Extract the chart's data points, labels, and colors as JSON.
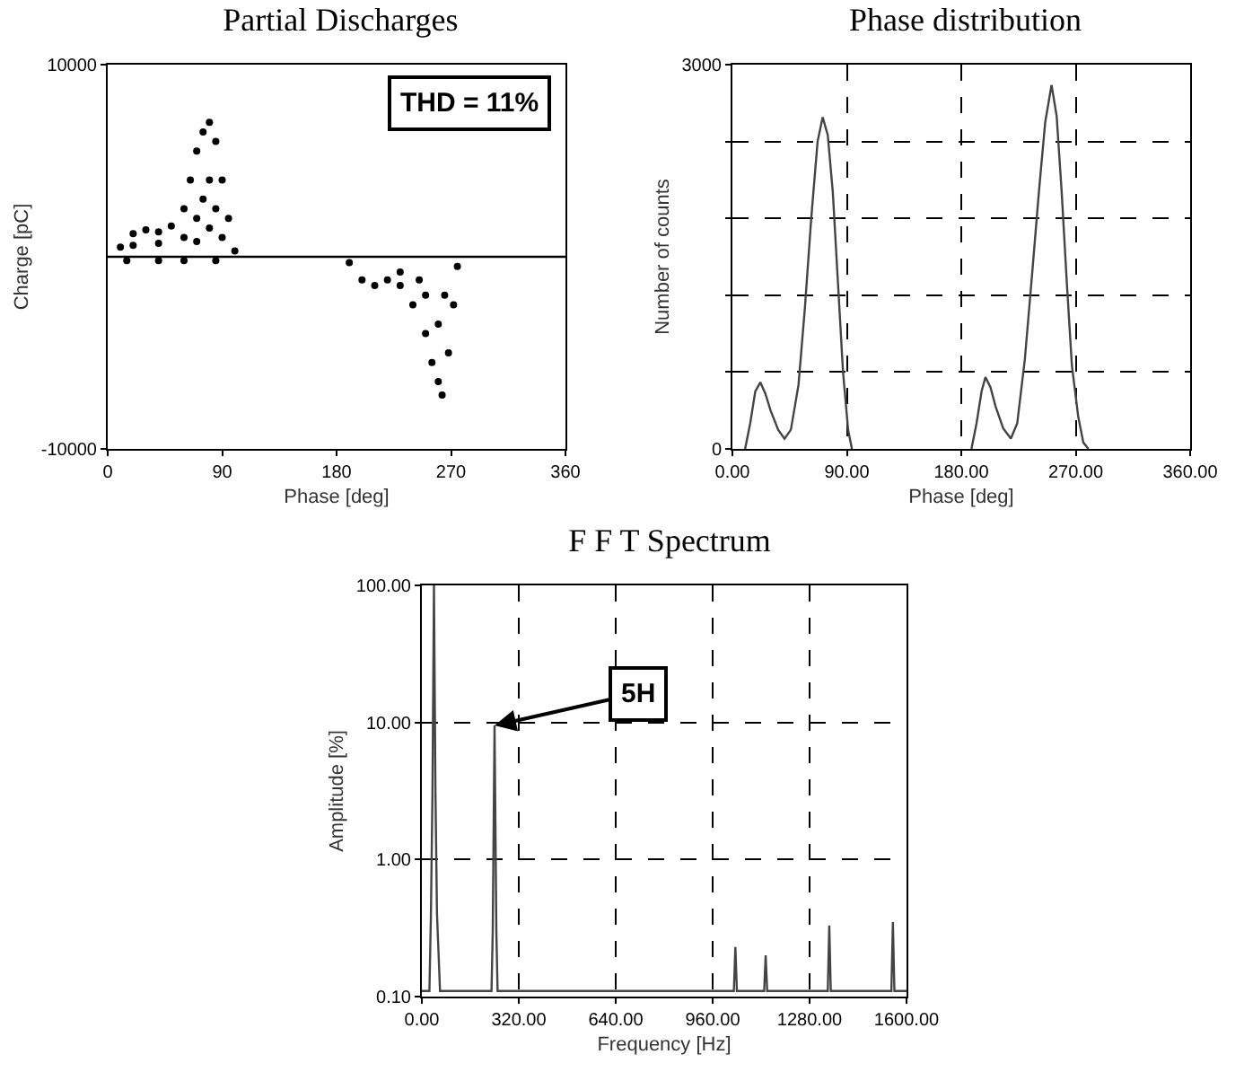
{
  "chart_data": [
    {
      "type": "scatter",
      "title": "Partial Discharges",
      "xlabel": "Phase [deg]",
      "ylabel": "Charge [pC]",
      "xlim": [
        0,
        360
      ],
      "ylim": [
        -10000,
        10000
      ],
      "xticks": [
        0,
        90,
        180,
        270,
        360
      ],
      "yticks": [
        -10000,
        10000
      ],
      "grid": false,
      "marker": "circle",
      "annotations": [
        "THD = 11%"
      ],
      "ref_lines": [
        {
          "axis": "y",
          "value": 0,
          "color": "#000000"
        }
      ],
      "series": [
        {
          "color": "#000000",
          "x": [
            10,
            20,
            30,
            40,
            50,
            60,
            65,
            70,
            75,
            80,
            85,
            90,
            95,
            100,
            20,
            40,
            60,
            70,
            75,
            80,
            85,
            90,
            70,
            80,
            15,
            40,
            60,
            85,
            190,
            200,
            210,
            220,
            230,
            240,
            250,
            255,
            260,
            263,
            268,
            272,
            275,
            230,
            250,
            260,
            265,
            245
          ],
          "values": [
            500,
            1200,
            1400,
            1300,
            1600,
            2500,
            4000,
            5500,
            6500,
            7000,
            6000,
            4000,
            2000,
            300,
            600,
            700,
            1000,
            2000,
            3000,
            4000,
            2500,
            1000,
            800,
            1500,
            -200,
            -200,
            -200,
            -200,
            -300,
            -1200,
            -1500,
            -1200,
            -1500,
            -2500,
            -4000,
            -5500,
            -6500,
            -7200,
            -5000,
            -2500,
            -500,
            -800,
            -2000,
            -3500,
            -2000,
            -1200
          ]
        }
      ]
    },
    {
      "type": "line",
      "title": "Phase distribution",
      "xlabel": "Phase [deg]",
      "ylabel": "Number of counts",
      "xlim": [
        0,
        360
      ],
      "ylim": [
        0,
        3000
      ],
      "xticks": [
        {
          "value": 0,
          "label": "0.00"
        },
        {
          "value": 90,
          "label": "90.00"
        },
        {
          "value": 180,
          "label": "180.00"
        },
        {
          "value": 270,
          "label": "270.00"
        },
        {
          "value": 360,
          "label": "360.00"
        }
      ],
      "yticks": [
        0,
        {
          "value": 600,
          "label": null
        },
        {
          "value": 1200,
          "label": null
        },
        {
          "value": 1800,
          "label": null
        },
        {
          "value": 2400,
          "label": null
        },
        3000
      ],
      "grid": true,
      "line_style": "solid",
      "series": [
        {
          "color": "#444444",
          "x": [
            10,
            14,
            18,
            22,
            26,
            30,
            36,
            41,
            46,
            52,
            57,
            62,
            67,
            71,
            75,
            79,
            83,
            87,
            91,
            94
          ],
          "values": [
            0,
            200,
            450,
            520,
            430,
            300,
            150,
            80,
            150,
            500,
            1100,
            1800,
            2400,
            2590,
            2450,
            2000,
            1300,
            600,
            150,
            0
          ]
        },
        {
          "color": "#444444",
          "x": [
            188,
            192,
            196,
            199,
            203,
            207,
            213,
            219,
            224,
            230,
            236,
            241,
            246,
            251,
            255,
            259,
            263,
            267,
            272,
            276,
            280
          ],
          "values": [
            0,
            200,
            450,
            560,
            480,
            330,
            160,
            80,
            200,
            700,
            1400,
            2000,
            2550,
            2840,
            2600,
            2000,
            1300,
            650,
            250,
            50,
            0
          ]
        }
      ]
    },
    {
      "type": "line",
      "title": "F F T Spectrum",
      "xlabel": "Frequency [Hz]",
      "ylabel": "Amplitude [%]",
      "log": "y",
      "xlim": [
        0,
        1600
      ],
      "ylim": [
        0.1,
        100
      ],
      "xticks": [
        {
          "value": 0,
          "label": "0.00"
        },
        {
          "value": 320,
          "label": "320.00"
        },
        {
          "value": 640,
          "label": "640.00"
        },
        {
          "value": 960,
          "label": "960.00"
        },
        {
          "value": 1280,
          "label": "1280.00"
        },
        {
          "value": 1600,
          "label": "1600.00"
        }
      ],
      "yticks": [
        {
          "value": 0.1,
          "label": "0.10"
        },
        {
          "value": 1,
          "label": "1.00"
        },
        {
          "value": 10,
          "label": "10.00"
        },
        {
          "value": 100,
          "label": "100.00"
        }
      ],
      "grid": true,
      "line_style": "solid",
      "annotations": [
        {
          "text": "5H",
          "x": 240,
          "y": 9.5
        }
      ],
      "series": [
        {
          "color": "#444444",
          "x": [
            0,
            25,
            30,
            35,
            40,
            45,
            50,
            60,
            230,
            234,
            240,
            246,
            250,
            1030,
            1035,
            1040,
            1045,
            1130,
            1135,
            1140,
            1145,
            1340,
            1345,
            1350,
            1355,
            1550,
            1555,
            1560,
            1565,
            1600
          ],
          "values": [
            0.11,
            0.11,
            0.4,
            3,
            100,
            3,
            0.4,
            0.11,
            0.11,
            0.3,
            9.5,
            0.3,
            0.11,
            0.11,
            0.23,
            0.11,
            0.11,
            0.11,
            0.2,
            0.11,
            0.11,
            0.11,
            0.33,
            0.11,
            0.11,
            0.11,
            0.35,
            0.11,
            0.11,
            0.11
          ]
        }
      ]
    }
  ]
}
